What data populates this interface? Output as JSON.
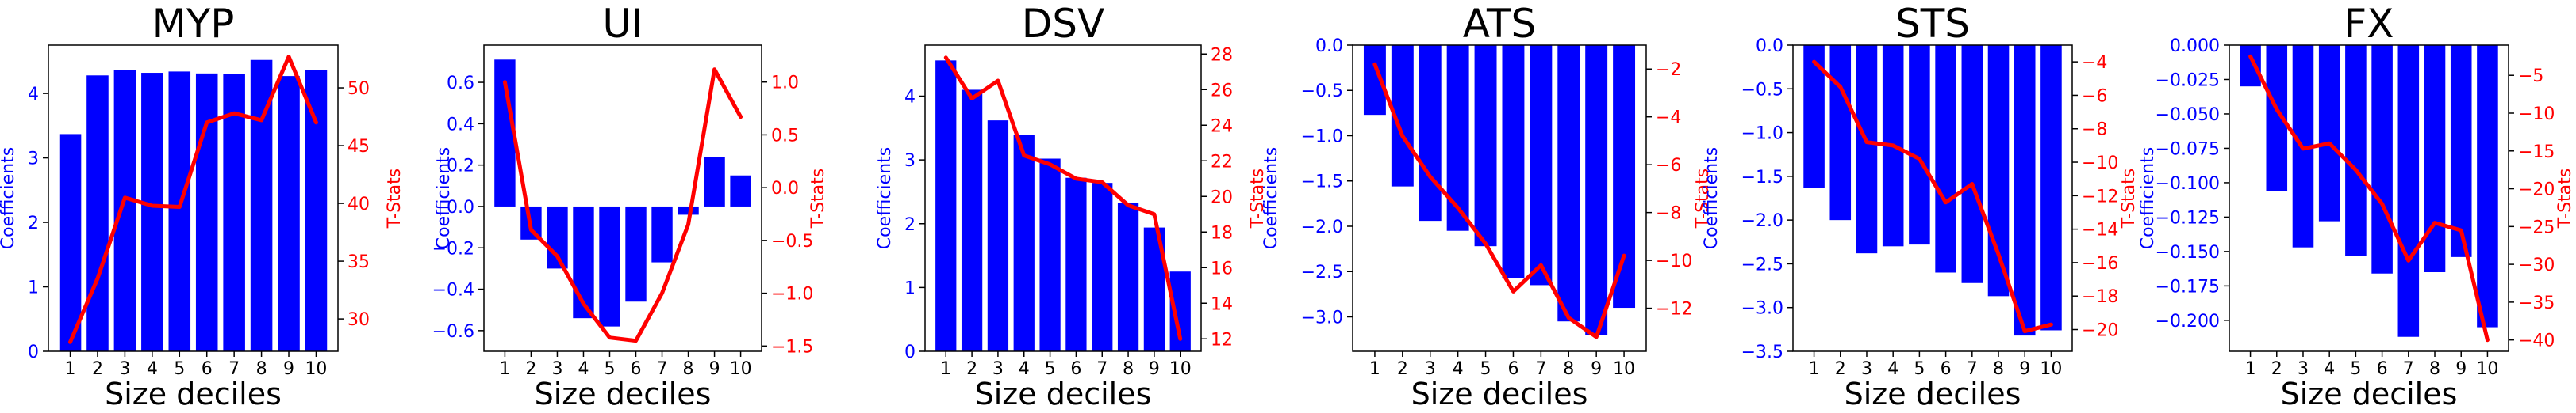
{
  "colors": {
    "bars": "#0000ff",
    "line": "#ff0000",
    "axis": "#000000"
  },
  "chart_data": [
    {
      "type": "bar+line",
      "title": "MYP",
      "xlabel": "Size deciles",
      "ylabel_left": "Coefficients",
      "ylabel_right": "T-Stats",
      "categories": [
        "1",
        "2",
        "3",
        "4",
        "5",
        "6",
        "7",
        "8",
        "9",
        "10"
      ],
      "ylim_left": [
        0,
        4.75
      ],
      "yticks_left": [
        0,
        1,
        2,
        3,
        4
      ],
      "ylim_right": [
        27.2,
        53.7
      ],
      "yticks_right": [
        30,
        35,
        40,
        45,
        50
      ],
      "grid": false,
      "series": [
        {
          "name": "Coefficients",
          "type": "bar",
          "axis": "left",
          "values": [
            3.37,
            4.28,
            4.36,
            4.32,
            4.34,
            4.31,
            4.3,
            4.52,
            4.27,
            4.36
          ]
        },
        {
          "name": "T-Stats",
          "type": "line",
          "axis": "right",
          "values": [
            28.0,
            33.5,
            40.5,
            39.8,
            39.7,
            47.0,
            47.8,
            47.2,
            52.7,
            47.0
          ]
        }
      ]
    },
    {
      "type": "bar+line",
      "title": "UI",
      "xlabel": "Size deciles",
      "ylabel_left": "Coefficients",
      "ylabel_right": "T-Stats",
      "categories": [
        "1",
        "2",
        "3",
        "4",
        "5",
        "6",
        "7",
        "8",
        "9",
        "10"
      ],
      "ylim_left": [
        -0.7,
        0.78
      ],
      "yticks_left": [
        -0.6,
        -0.4,
        -0.2,
        0.0,
        0.2,
        0.4,
        0.6
      ],
      "ytick_format_left": 1,
      "ylim_right": [
        -1.55,
        1.35
      ],
      "yticks_right": [
        -1.5,
        -1.0,
        -0.5,
        0.0,
        0.5,
        1.0
      ],
      "ytick_format_right": 1,
      "grid": false,
      "series": [
        {
          "name": "Coefficients",
          "type": "bar",
          "axis": "left",
          "values": [
            0.71,
            -0.16,
            -0.3,
            -0.54,
            -0.58,
            -0.46,
            -0.27,
            -0.04,
            0.24,
            0.15
          ]
        },
        {
          "name": "T-Stats",
          "type": "line",
          "axis": "right",
          "values": [
            1.0,
            -0.4,
            -0.65,
            -1.1,
            -1.42,
            -1.45,
            -1.0,
            -0.35,
            1.12,
            0.67
          ]
        }
      ]
    },
    {
      "type": "bar+line",
      "title": "DSV",
      "xlabel": "Size deciles",
      "ylabel_left": "Coefficients",
      "ylabel_right": "T-Stats",
      "categories": [
        "1",
        "2",
        "3",
        "4",
        "5",
        "6",
        "7",
        "8",
        "9",
        "10"
      ],
      "ylim_left": [
        0,
        4.8
      ],
      "yticks_left": [
        0,
        1,
        2,
        3,
        4
      ],
      "ylim_right": [
        11.3,
        28.5
      ],
      "yticks_right": [
        12,
        14,
        16,
        18,
        20,
        22,
        24,
        26,
        28
      ],
      "grid": false,
      "series": [
        {
          "name": "Coefficients",
          "type": "bar",
          "axis": "left",
          "values": [
            4.56,
            4.1,
            3.62,
            3.39,
            3.02,
            2.72,
            2.64,
            2.32,
            1.94,
            1.25
          ]
        },
        {
          "name": "T-Stats",
          "type": "line",
          "axis": "right",
          "values": [
            27.8,
            25.5,
            26.5,
            22.3,
            21.8,
            21.0,
            20.8,
            19.5,
            19.0,
            12.0
          ]
        }
      ]
    },
    {
      "type": "bar+line",
      "title": "ATS",
      "xlabel": "Size deciles",
      "ylabel_left": "Coefficients",
      "ylabel_right": "T-Stats",
      "categories": [
        "1",
        "2",
        "3",
        "4",
        "5",
        "6",
        "7",
        "8",
        "9",
        "10"
      ],
      "ylim_left": [
        -3.38,
        0.0
      ],
      "yticks_left": [
        -3.0,
        -2.5,
        -2.0,
        -1.5,
        -1.0,
        -0.5,
        0.0
      ],
      "ytick_format_left": 1,
      "ylim_right": [
        -13.8,
        -1.0
      ],
      "yticks_right": [
        -12,
        -10,
        -8,
        -6,
        -4,
        -2
      ],
      "grid": false,
      "series": [
        {
          "name": "Coefficients",
          "type": "bar",
          "axis": "left",
          "values": [
            -0.77,
            -1.56,
            -1.94,
            -2.05,
            -2.22,
            -2.57,
            -2.65,
            -3.05,
            -3.2,
            -2.9
          ]
        },
        {
          "name": "T-Stats",
          "type": "line",
          "axis": "right",
          "values": [
            -1.8,
            -4.8,
            -6.5,
            -7.8,
            -9.3,
            -11.3,
            -10.2,
            -12.4,
            -13.2,
            -9.8
          ]
        }
      ]
    },
    {
      "type": "bar+line",
      "title": "STS",
      "xlabel": "Size deciles",
      "ylabel_left": "Coefficients",
      "ylabel_right": "T-Stats",
      "categories": [
        "1",
        "2",
        "3",
        "4",
        "5",
        "6",
        "7",
        "8",
        "9",
        "10"
      ],
      "ylim_left": [
        -3.5,
        0.0
      ],
      "yticks_left": [
        -3.5,
        -3.0,
        -2.5,
        -2.0,
        -1.5,
        -1.0,
        -0.5,
        0.0
      ],
      "ytick_format_left": 1,
      "ylim_right": [
        -21.3,
        -3.0
      ],
      "yticks_right": [
        -20,
        -18,
        -16,
        -14,
        -12,
        -10,
        -8,
        -6,
        -4
      ],
      "grid": false,
      "series": [
        {
          "name": "Coefficients",
          "type": "bar",
          "axis": "left",
          "values": [
            -1.63,
            -2.0,
            -2.38,
            -2.3,
            -2.28,
            -2.6,
            -2.72,
            -2.87,
            -3.32,
            -3.26
          ]
        },
        {
          "name": "T-Stats",
          "type": "line",
          "axis": "right",
          "values": [
            -4.0,
            -5.5,
            -8.8,
            -9.0,
            -9.8,
            -12.4,
            -11.3,
            -15.5,
            -20.1,
            -19.7
          ]
        }
      ]
    },
    {
      "type": "bar+line",
      "title": "FX",
      "xlabel": "Size deciles",
      "ylabel_left": "Coefficients",
      "ylabel_right": "T-Stats",
      "categories": [
        "1",
        "2",
        "3",
        "4",
        "5",
        "6",
        "7",
        "8",
        "9",
        "10"
      ],
      "ylim_left": [
        -0.2225,
        0.0
      ],
      "yticks_left": [
        -0.2,
        -0.175,
        -0.15,
        -0.125,
        -0.1,
        -0.075,
        -0.05,
        -0.025,
        0.0
      ],
      "ytick_format_left": 3,
      "ylim_right": [
        -41.5,
        -1.0
      ],
      "yticks_right": [
        -40,
        -35,
        -30,
        -25,
        -20,
        -15,
        -10,
        -5
      ],
      "grid": false,
      "series": [
        {
          "name": "Coefficients",
          "type": "bar",
          "axis": "left",
          "values": [
            -0.03,
            -0.106,
            -0.147,
            -0.128,
            -0.153,
            -0.166,
            -0.212,
            -0.165,
            -0.154,
            -0.205
          ]
        },
        {
          "name": "T-Stats",
          "type": "line",
          "axis": "right",
          "values": [
            -2.5,
            -9.5,
            -14.7,
            -14.0,
            -17.5,
            -22.0,
            -29.5,
            -24.5,
            -25.5,
            -40.0
          ]
        }
      ]
    }
  ]
}
